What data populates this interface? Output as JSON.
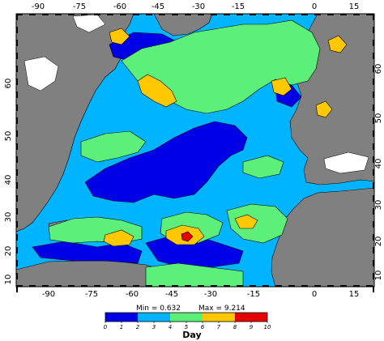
{
  "map": {
    "lon_ticks": [
      "-90",
      "-75",
      "-60",
      "-45",
      "-30",
      "-15",
      "0",
      "15"
    ],
    "lat_ticks": [
      "10",
      "20",
      "30",
      "40",
      "50",
      "60"
    ],
    "colors": {
      "land": "#808080",
      "ice": "#ffffff",
      "class_0_2": "#0000e6",
      "class_2_4": "#00b4ff",
      "class_4_6": "#5cf07a",
      "class_6_8": "#ffc800",
      "class_8_10": "#e60000",
      "contour": "#000000"
    }
  },
  "colorbar": {
    "min_label": "Min = 0.632",
    "max_label": "Max = 9.214",
    "ticks": [
      "0",
      "1",
      "2",
      "3",
      "4",
      "5",
      "6",
      "7",
      "8",
      "9",
      "10"
    ],
    "unit": "Day",
    "classes": [
      {
        "from": 0,
        "to": 2,
        "color": "#0000e6"
      },
      {
        "from": 2,
        "to": 4,
        "color": "#00b4ff"
      },
      {
        "from": 4,
        "to": 6,
        "color": "#5cf07a"
      },
      {
        "from": 6,
        "to": 8,
        "color": "#ffc800"
      },
      {
        "from": 8,
        "to": 10,
        "color": "#e60000"
      }
    ]
  }
}
